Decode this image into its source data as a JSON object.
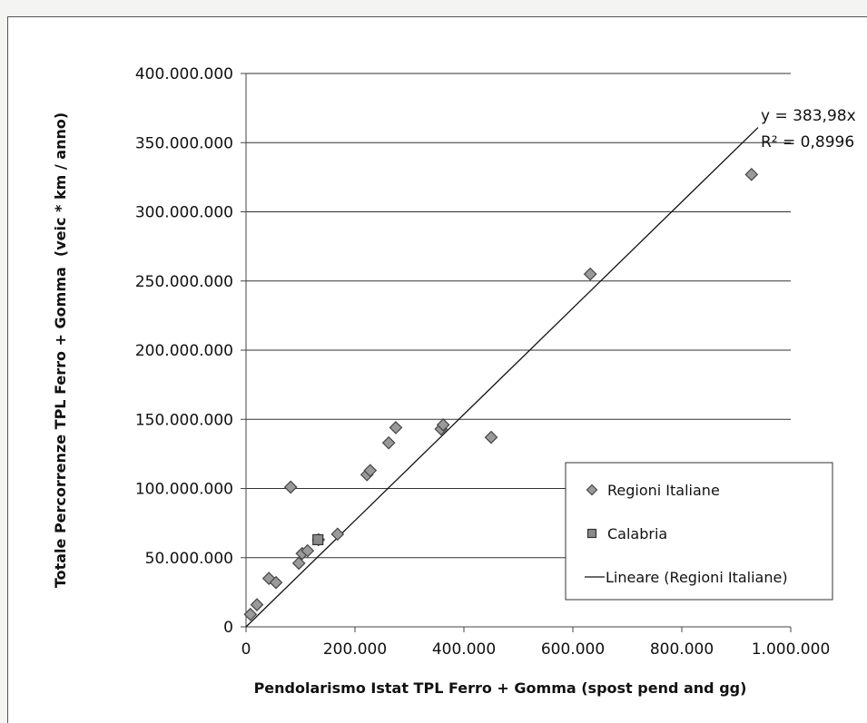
{
  "chart_data": {
    "type": "scatter",
    "title": "",
    "xlabel": "Pendolarismo Istat TPL Ferro + Gomma (spost pend and gg)",
    "ylabel": "Totale Percorrenze TPL Ferro + Gomma  (veic * km / anno)",
    "xlim": [
      0,
      1000000
    ],
    "ylim": [
      0,
      400000000
    ],
    "x_ticks": [
      0,
      200000,
      400000,
      600000,
      800000,
      1000000
    ],
    "x_tick_labels": [
      "0",
      "200.000",
      "400.000",
      "600.000",
      "800.000",
      "1.000.000"
    ],
    "y_ticks": [
      0,
      50000000,
      100000000,
      150000000,
      200000000,
      250000000,
      300000000,
      350000000,
      400000000
    ],
    "y_tick_labels": [
      "0",
      "50.000.000",
      "100.000.000",
      "150.000.000",
      "200.000.000",
      "250.000.000",
      "300.000.000",
      "350.000.000",
      "400.000.000"
    ],
    "grid": "horizontal",
    "legend_position": "bottom-right",
    "series": [
      {
        "name": "Regioni Italiane",
        "marker": "diamond",
        "color": "#777777",
        "points": [
          [
            8000,
            9000000
          ],
          [
            20000,
            16000000
          ],
          [
            42000,
            35000000
          ],
          [
            55000,
            32000000
          ],
          [
            82000,
            101000000
          ],
          [
            97000,
            46000000
          ],
          [
            103000,
            53000000
          ],
          [
            113000,
            55000000
          ],
          [
            133000,
            63000000
          ],
          [
            168000,
            67000000
          ],
          [
            222000,
            110000000
          ],
          [
            228000,
            113000000
          ],
          [
            262000,
            133000000
          ],
          [
            275000,
            144000000
          ],
          [
            358000,
            143000000
          ],
          [
            362000,
            146000000
          ],
          [
            450000,
            137000000
          ],
          [
            632000,
            255000000
          ],
          [
            928000,
            327000000
          ]
        ]
      },
      {
        "name": "Calabria",
        "marker": "square",
        "color": "#777777",
        "points": [
          [
            132000,
            63000000
          ]
        ]
      }
    ],
    "trendline": {
      "name": "Lineare (Regioni Italiane)",
      "slope": 383.98,
      "x_range": [
        0,
        940000
      ],
      "equation": "y = 383,98x",
      "r2": "R² = 0,8996"
    }
  }
}
